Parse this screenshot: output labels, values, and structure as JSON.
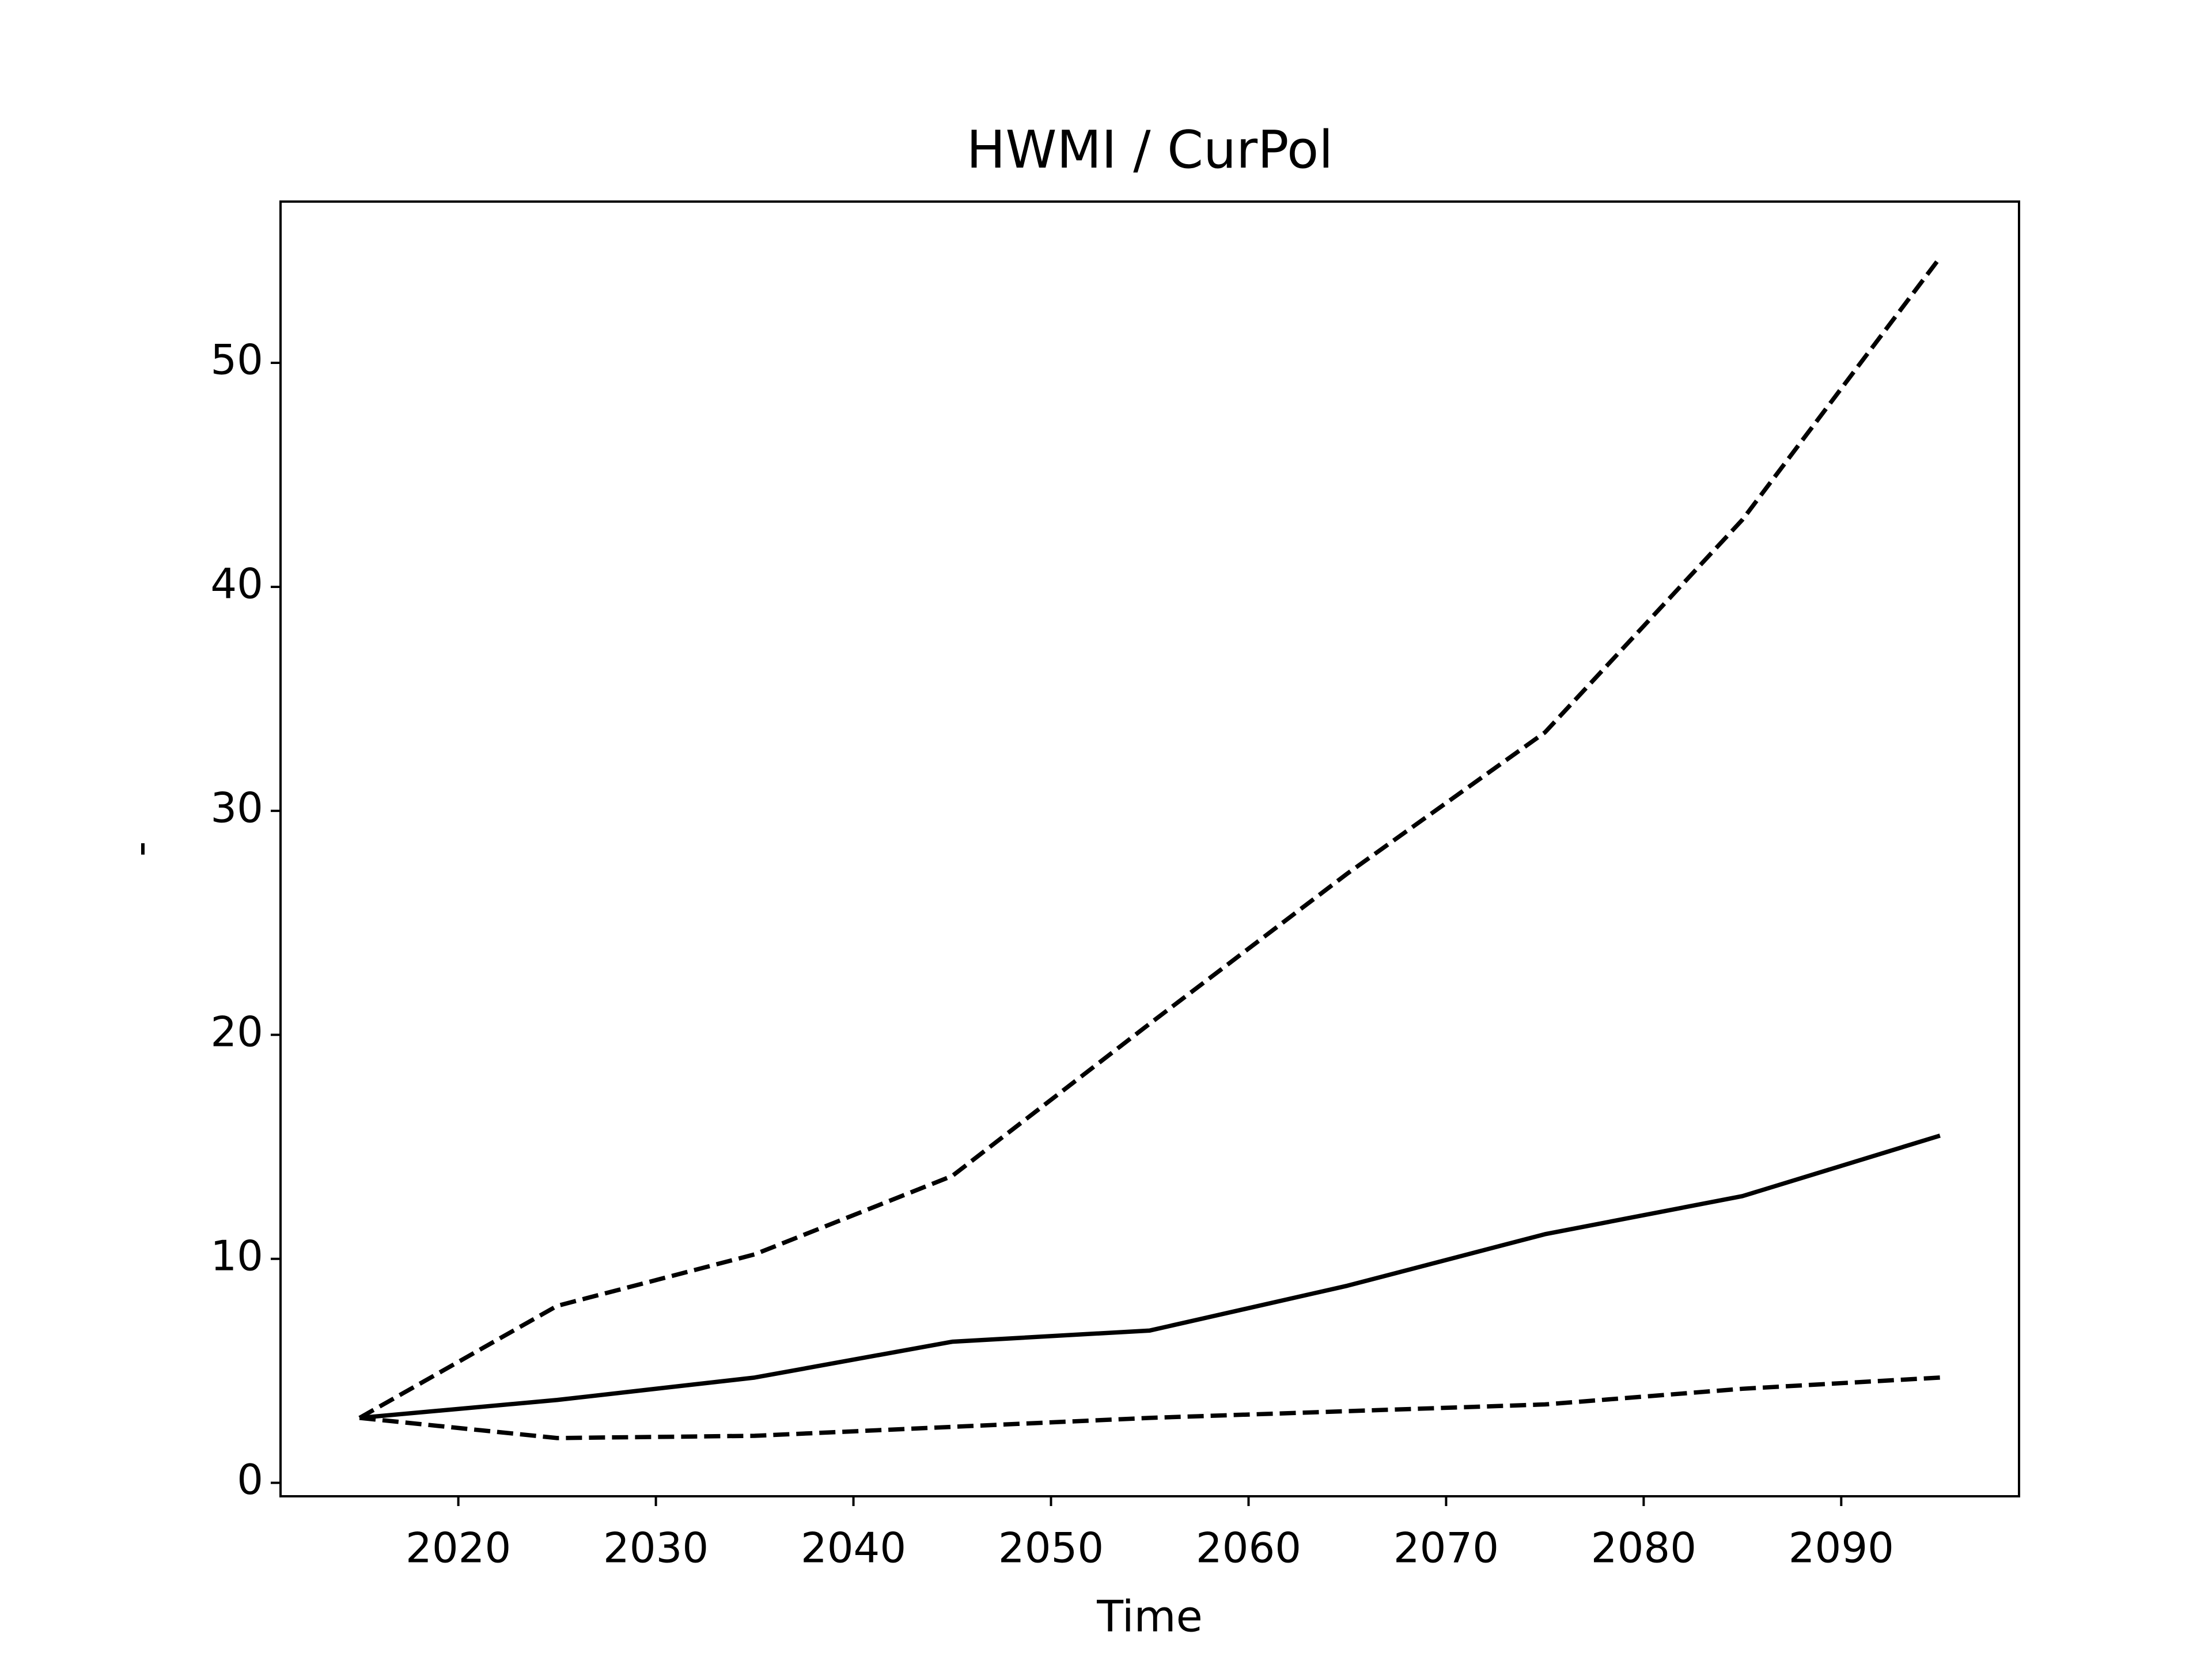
{
  "chart_data": {
    "type": "line",
    "title": "HWMI / CurPol",
    "x_label": "Time",
    "y_label": "-",
    "x": [
      2015,
      2025,
      2035,
      2045,
      2055,
      2065,
      2075,
      2085,
      2095
    ],
    "series": [
      {
        "color": "#000000",
        "dash": "solid",
        "values": [
          2.9,
          3.7,
          4.7,
          6.3,
          6.8,
          8.8,
          11.1,
          12.8,
          15.5
        ]
      },
      {
        "color": "#000000",
        "dash": "dashed",
        "values": [
          2.9,
          7.9,
          10.2,
          13.7,
          20.5,
          27.2,
          33.5,
          43.0,
          54.7
        ]
      },
      {
        "color": "#000000",
        "dash": "dashed",
        "values": [
          2.9,
          2.0,
          2.1,
          2.5,
          2.9,
          3.2,
          3.5,
          4.2,
          4.7
        ]
      }
    ],
    "xlim": [
      2011,
      2099
    ],
    "xticks": [
      2020,
      2030,
      2040,
      2050,
      2060,
      2070,
      2080,
      2090
    ],
    "ylim": [
      -0.6,
      57.2
    ],
    "yticks": [
      0,
      10,
      20,
      30,
      40,
      50
    ],
    "grid": false
  }
}
